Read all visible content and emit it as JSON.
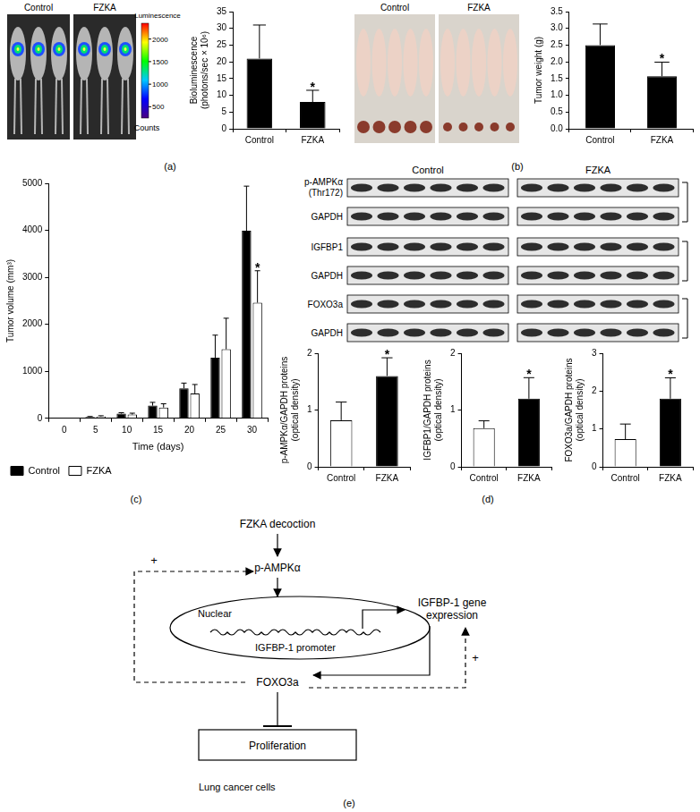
{
  "chart_data": [
    {
      "type": "bar",
      "categories": [
        "Control",
        "FZKA"
      ],
      "values": [
        21,
        8
      ],
      "errors": [
        10,
        3.5
      ],
      "color": "#000000",
      "ylabel": [
        "Bioluminescence",
        "(photons/sec × 10⁶)"
      ],
      "ylim": [
        0,
        35
      ],
      "yticks": [
        0,
        5,
        10,
        15,
        20,
        25,
        30,
        35
      ],
      "grid": false,
      "annotations": [
        {
          "category": "FZKA",
          "text": "*"
        }
      ]
    },
    {
      "type": "bar",
      "categories": [
        "Control",
        "FZKA"
      ],
      "values": [
        2.5,
        1.57
      ],
      "errors": [
        0.63,
        0.42
      ],
      "color": "#000000",
      "ylabel": "Tumor weight (g)",
      "ylim": [
        0,
        3.5
      ],
      "yticks": [
        {
          "value": 0,
          "label": "0.0"
        },
        0.5,
        {
          "value": 1,
          "label": "1.0"
        },
        1.5,
        {
          "value": 2,
          "label": "2.0"
        },
        2.5,
        {
          "value": 3,
          "label": "3.0"
        },
        3.5
      ],
      "grid": false,
      "annotations": [
        {
          "category": "FZKA",
          "text": "*"
        }
      ]
    },
    {
      "type": "bar",
      "categories": [
        0,
        5,
        10,
        15,
        20,
        25,
        30
      ],
      "series": [
        {
          "name": "Control",
          "color": "#000000",
          "values": [
            0,
            30,
            100,
            270,
            640,
            1290,
            3990
          ],
          "errors": [
            0,
            10,
            20,
            70,
            110,
            480,
            950
          ]
        },
        {
          "name": "FZKA",
          "color": "#ffffff",
          "values": [
            0,
            40,
            80,
            230,
            530,
            1470,
            2460
          ],
          "errors": [
            0,
            15,
            30,
            80,
            190,
            660,
            680
          ]
        }
      ],
      "xlabel": "Time (days)",
      "ylabel": "Tumor volume (mm³)",
      "ylim": [
        0,
        5000
      ],
      "yticks": [
        0,
        1000,
        2000,
        3000,
        4000,
        5000
      ],
      "grid": false,
      "legend": "bottom",
      "annotations": [
        {
          "series": "FZKA",
          "category": 30,
          "text": "*"
        }
      ]
    },
    {
      "type": "bar",
      "categories": [
        "Control",
        "FZKA"
      ],
      "values": [
        0.82,
        1.6
      ],
      "errors": [
        0.32,
        0.32
      ],
      "colors": [
        "#ffffff",
        "#000000"
      ],
      "ylabel": [
        "p-AMPKα/GAPDH proteins",
        "(optical density)"
      ],
      "ylim": [
        0,
        2
      ],
      "yticks": [
        0,
        1,
        2
      ],
      "grid": false,
      "annotations": [
        {
          "category": "FZKA",
          "text": "*"
        }
      ]
    },
    {
      "type": "bar",
      "categories": [
        "Control",
        "FZKA"
      ],
      "values": [
        0.68,
        1.2
      ],
      "errors": [
        0.13,
        0.37
      ],
      "colors": [
        "#ffffff",
        "#000000"
      ],
      "ylabel": [
        "IGFBP1/GAPDH proteins",
        "(optical density)"
      ],
      "ylim": [
        0,
        2
      ],
      "yticks": [
        0,
        1,
        2
      ],
      "grid": false,
      "annotations": [
        {
          "category": "FZKA",
          "text": "*"
        }
      ]
    },
    {
      "type": "bar",
      "categories": [
        "Control",
        "FZKA"
      ],
      "values": [
        0.73,
        1.8
      ],
      "errors": [
        0.4,
        0.55
      ],
      "colors": [
        "#ffffff",
        "#000000"
      ],
      "ylabel": [
        "FOXO3a/GAPDH proteins",
        "(optical density)"
      ],
      "ylim": [
        0,
        3
      ],
      "yticks": [
        0,
        1,
        2,
        3
      ],
      "grid": false,
      "annotations": [
        {
          "category": "FZKA",
          "text": "*"
        }
      ]
    }
  ],
  "images": [
    {
      "groups": [
        "Control",
        "FZKA"
      ],
      "colorbar": {
        "title": "Luminescence",
        "unit": "Counts",
        "range": [
          250,
          2350
        ],
        "ticks": [
          500,
          1000,
          1500,
          2000
        ]
      }
    },
    {
      "groups": [
        "Control",
        "FZKA"
      ]
    }
  ],
  "blot": {
    "groups": [
      "Control",
      "FZKA"
    ],
    "rows": [
      [
        "p-AMPKα",
        "(Thr172)"
      ],
      [
        "GAPDH"
      ],
      [
        "IGFBP1"
      ],
      [
        "GAPDH"
      ],
      [
        "FOXO3a"
      ],
      [
        "GAPDH"
      ]
    ]
  },
  "diagram": {
    "drug": "FZKA decoction",
    "kinase": "p-AMPKα",
    "nucleus": "Nuclear",
    "promoter": "IGFBP-1 promoter",
    "gene": [
      "IGFBP-1 gene",
      "expression"
    ],
    "tf": "FOXO3a",
    "outcome": "Proliferation",
    "cell": "Lung cancer cells",
    "signs": [
      "+",
      "+"
    ]
  },
  "panel_labels": [
    "(a)",
    "(b)",
    "(c)",
    "(d)",
    "(e)"
  ]
}
